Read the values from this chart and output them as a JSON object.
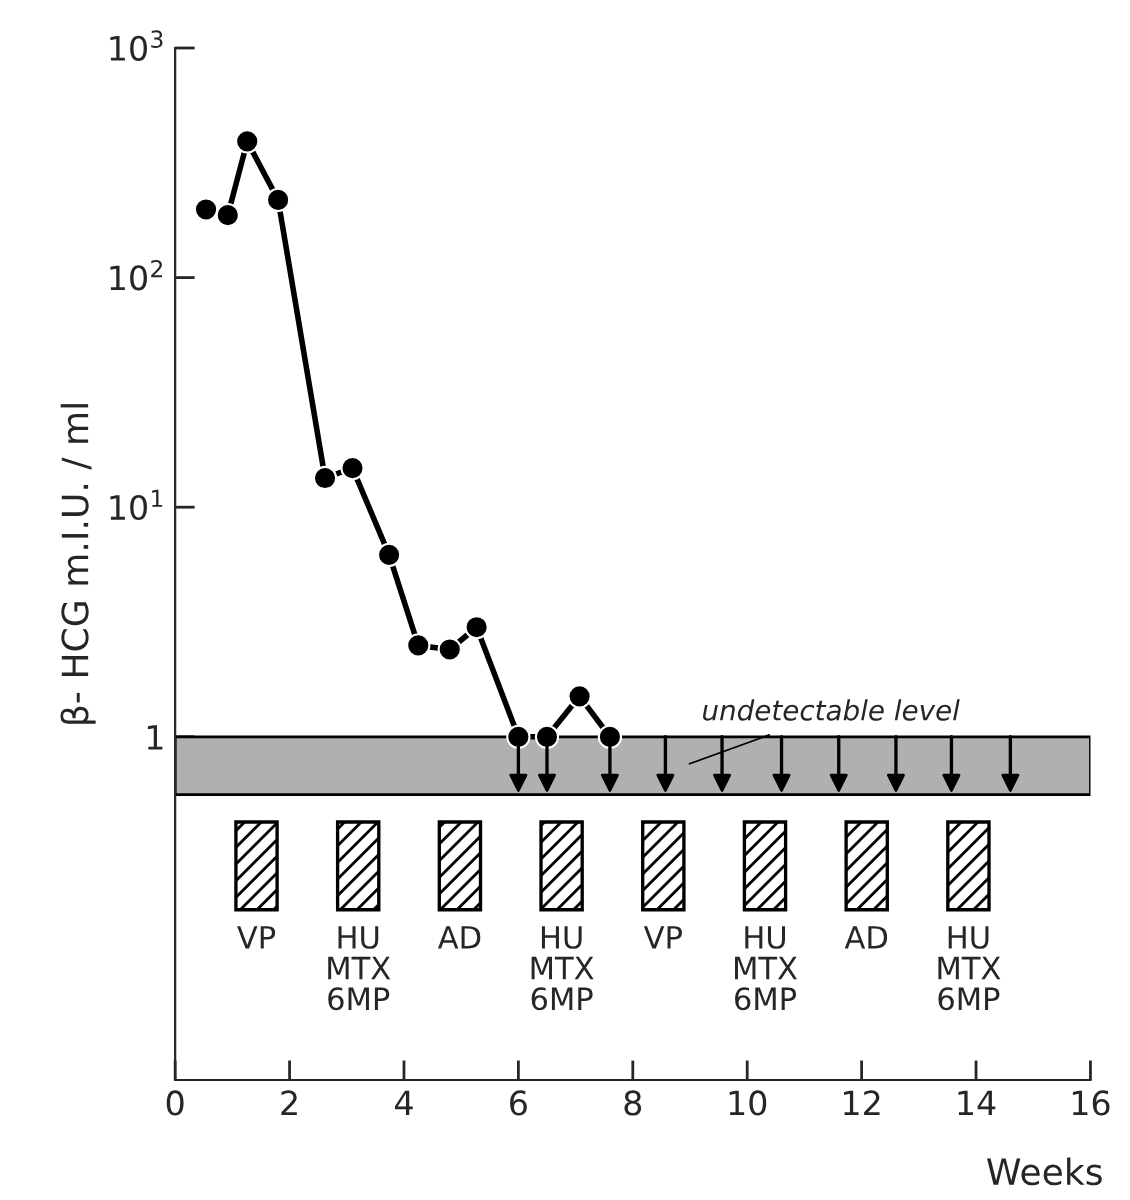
{
  "chart_data": {
    "type": "line",
    "ylabel": "β- HCG m.I.U. / ml",
    "xlabel": "Weeks",
    "log": "y",
    "xlim": [
      0,
      16
    ],
    "xticks": [
      0,
      2,
      4,
      6,
      8,
      10,
      12,
      14,
      16
    ],
    "ylim": [
      0.032,
      1000
    ],
    "yticks": [
      {
        "value": 1,
        "label": "1"
      },
      {
        "value": 10,
        "label": "10$^{1}$"
      },
      {
        "value": 100,
        "label": "10$^{2}$"
      },
      {
        "value": 1000,
        "label": "10$^{3}$"
      }
    ],
    "grid": false,
    "legend": false,
    "marker": "circle",
    "line_style": "solid",
    "series": [
      {
        "color": "#000000",
        "x": [
          0.54,
          0.92,
          1.26,
          1.8,
          2.62,
          3.1,
          3.74,
          4.25,
          4.8,
          5.27,
          6.0,
          6.5,
          7.07,
          7.6
        ],
        "values": [
          198,
          187,
          392,
          218,
          13.4,
          14.8,
          6.2,
          2.5,
          2.4,
          3.0,
          1.0,
          1.0,
          1.5,
          1.0
        ]
      },
      {
        "type": "scatter",
        "color": "#000000",
        "marker": "triangle",
        "x": [
          6.0,
          6.5,
          7.6,
          8.57,
          9.56,
          10.6,
          11.6,
          12.6,
          13.57,
          14.6
        ],
        "values": [
          0.63,
          0.63,
          0.63,
          0.63,
          0.63,
          0.63,
          0.63,
          0.63,
          0.63,
          0.63
        ]
      }
    ],
    "bands": [
      {
        "axis": "y",
        "from": 0.56,
        "to": 1.0,
        "label": "undetectable level",
        "color": "#b0b0b0"
      }
    ],
    "annotations": [
      "VP",
      "HU\nMTX\n6MP",
      "AD",
      "HU\nMTX\n6MP",
      "VP",
      "HU\nMTX\n6MP",
      "AD",
      "HU\nMTX\n6MP"
    ]
  }
}
